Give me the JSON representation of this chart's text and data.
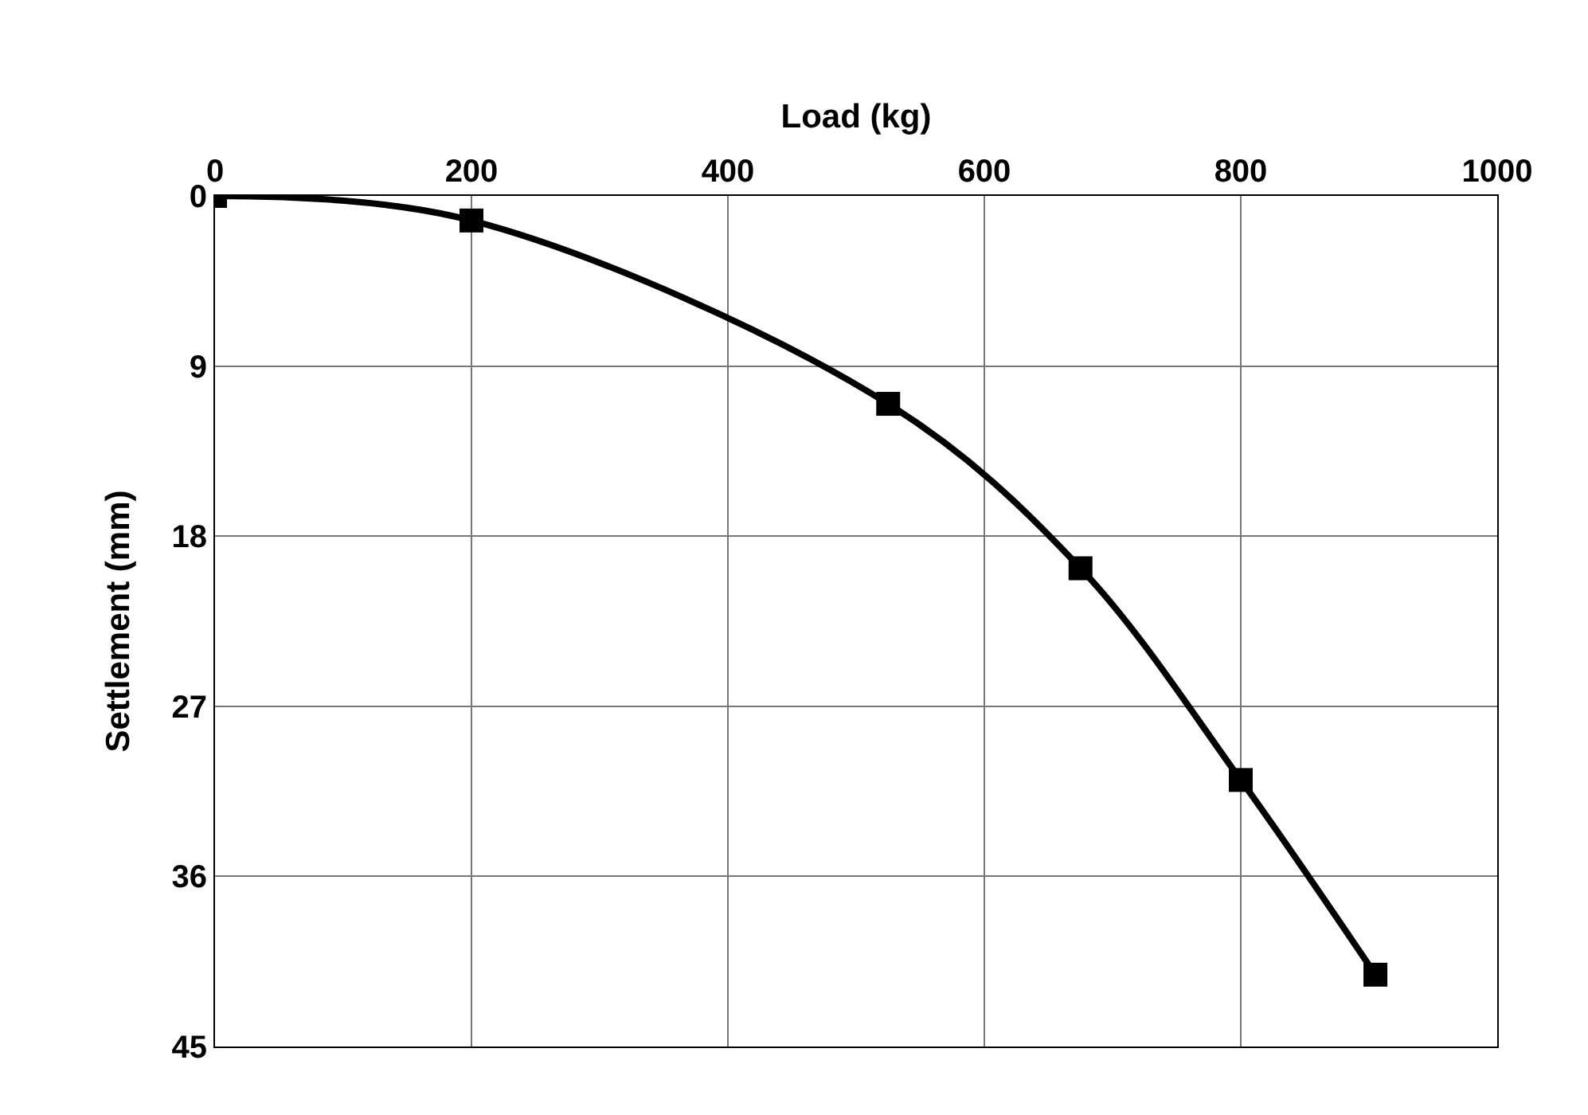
{
  "chart_data": {
    "type": "line",
    "xlabel": "Load (kg)",
    "ylabel": "Settlement (mm)",
    "x": [
      0,
      200,
      525,
      675,
      800,
      905
    ],
    "series": [
      {
        "color": "#000000",
        "values": [
          0,
          1.3,
          11,
          19.7,
          30.9,
          41.2
        ]
      }
    ],
    "xlim": [
      0,
      1000
    ],
    "xticks": [
      0,
      200,
      400,
      600,
      800,
      1000
    ],
    "ylim": [
      45,
      0
    ],
    "yticks": [
      0,
      9,
      18,
      27,
      36,
      45
    ],
    "grid": true,
    "marker": "square",
    "line_style": "solid"
  }
}
